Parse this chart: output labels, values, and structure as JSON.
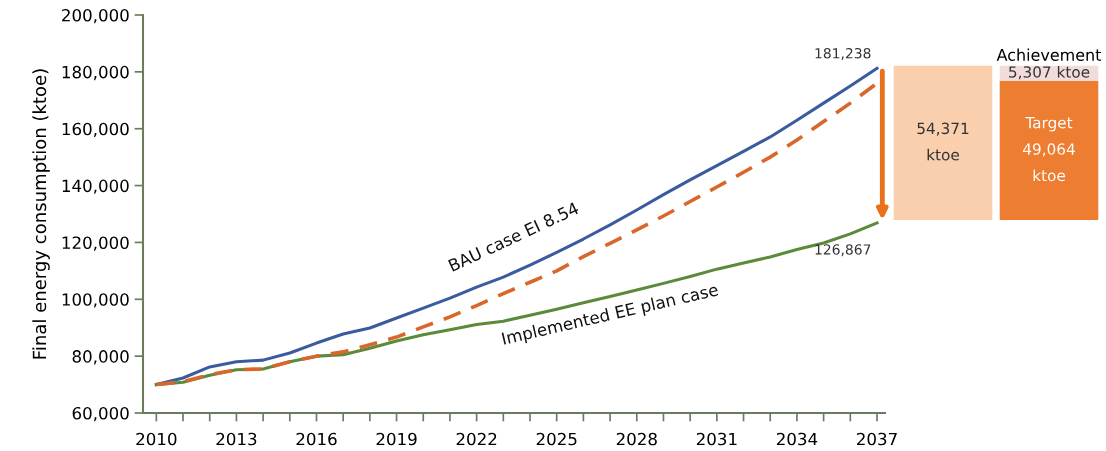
{
  "chart_data": [
    {
      "type": "line",
      "ylabel": "Final energy consumption (ktoe)",
      "x": [
        2010,
        2011,
        2012,
        2013,
        2014,
        2015,
        2016,
        2017,
        2018,
        2019,
        2020,
        2021,
        2022,
        2023,
        2024,
        2025,
        2026,
        2027,
        2028,
        2029,
        2030,
        2031,
        2032,
        2033,
        2034,
        2035,
        2036,
        2037
      ],
      "series": [
        {
          "name": "BAU case EI 8.54",
          "color": "#3a5ba0",
          "line_style": "solid",
          "values": [
            70000,
            72300,
            76200,
            78000,
            78600,
            81100,
            84600,
            87800,
            89900,
            93400,
            96900,
            100400,
            104300,
            107800,
            112000,
            116500,
            121200,
            126200,
            131400,
            136800,
            142000,
            147000,
            152000,
            157100,
            163000,
            169000,
            175000,
            181238
          ]
        },
        {
          "color": "#d9662b",
          "line_style": "dashed",
          "values": [
            70000,
            71000,
            73500,
            75200,
            75500,
            78000,
            80000,
            81500,
            84000,
            86700,
            90300,
            93800,
            97800,
            102000,
            106000,
            110000,
            115000,
            119700,
            124400,
            129300,
            134400,
            139500,
            144700,
            150000,
            156000,
            162500,
            169000,
            176000
          ]
        },
        {
          "name": "Implemented EE plan case",
          "color": "#5a8a3a",
          "line_style": "solid",
          "values": [
            70000,
            70800,
            73300,
            75200,
            75500,
            78000,
            80000,
            80500,
            82800,
            85300,
            87500,
            89300,
            91100,
            92300,
            94400,
            96500,
            98800,
            101000,
            103300,
            105600,
            108000,
            110600,
            112800,
            114900,
            117500,
            119800,
            123000,
            126867
          ]
        }
      ],
      "xlim": [
        2009.5,
        2037.3
      ],
      "xticks": [
        2010,
        {
          "value": 2011,
          "label": null
        },
        {
          "value": 2012,
          "label": null
        },
        2013,
        {
          "value": 2014,
          "label": null
        },
        {
          "value": 2015,
          "label": null
        },
        2016,
        {
          "value": 2017,
          "label": null
        },
        {
          "value": 2018,
          "label": null
        },
        2019,
        {
          "value": 2020,
          "label": null
        },
        {
          "value": 2021,
          "label": null
        },
        2022,
        {
          "value": 2023,
          "label": null
        },
        {
          "value": 2024,
          "label": null
        },
        2025,
        {
          "value": 2026,
          "label": null
        },
        {
          "value": 2027,
          "label": null
        },
        2028,
        {
          "value": 2029,
          "label": null
        },
        {
          "value": 2030,
          "label": null
        },
        2031,
        {
          "value": 2032,
          "label": null
        },
        {
          "value": 2033,
          "label": null
        },
        2034,
        {
          "value": 2035,
          "label": null
        },
        {
          "value": 2036,
          "label": null
        },
        2037
      ],
      "ylim": [
        60000,
        200000
      ],
      "yticks": [
        {
          "value": 60000,
          "label": "60,000"
        },
        {
          "value": 80000,
          "label": "80,000"
        },
        {
          "value": 100000,
          "label": "100,000"
        },
        {
          "value": 120000,
          "label": "120,000"
        },
        {
          "value": 140000,
          "label": "140,000"
        },
        {
          "value": 160000,
          "label": "160,000"
        },
        {
          "value": 180000,
          "label": "180,000"
        },
        {
          "value": 200000,
          "label": "200,000"
        }
      ],
      "annotations": [
        {
          "text": "181,238",
          "x": 2037,
          "y": 181238
        },
        {
          "text": "126,867",
          "x": 2037,
          "y": 126867
        }
      ],
      "grid": false,
      "legend": false
    },
    {
      "type": "bar",
      "stacked": true,
      "categories": [
        null,
        null
      ],
      "ylim": [
        0,
        55000
      ],
      "series": [
        {
          "colors": [
            "#f9cfae",
            "#ed7d31"
          ],
          "values": [
            54371,
            49064
          ],
          "value_labels": [
            "54,371\nktoe",
            "Target\n49,064\nktoe"
          ]
        },
        {
          "color": "#f2dcdb",
          "values": [
            null,
            5307
          ],
          "value_labels": [
            null,
            "5,307 ktoe"
          ]
        }
      ],
      "annotations": [
        "Achievement"
      ]
    }
  ]
}
